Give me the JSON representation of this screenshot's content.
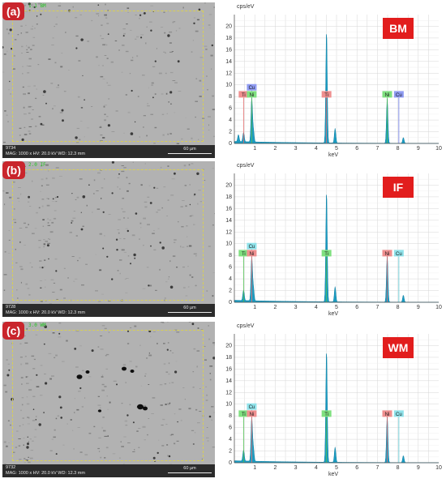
{
  "panels": [
    {
      "label": "(a)",
      "sample": "BM",
      "sem": {
        "corner_tag": "1.1 BM",
        "code": "9734",
        "meta": "MAG: 1000 x HV: 20.0 kV WD: 12.3 mm",
        "scale": "60 µm"
      },
      "tex_seed": 7,
      "big_pores": false
    },
    {
      "label": "(b)",
      "sample": "IF",
      "sem": {
        "corner_tag": "2.0 IF",
        "code": "9728",
        "meta": "MAG: 1000 x HV: 20.0 kV WD: 12.3 mm",
        "scale": "60 µm"
      },
      "tex_seed": 19,
      "big_pores": false
    },
    {
      "label": "(c)",
      "sample": "WM",
      "sem": {
        "corner_tag": "3.0 WM",
        "code": "9732",
        "meta": "MAG: 1000 x HV: 20.0 kV WD: 12.3 mm",
        "scale": "60 µm"
      },
      "tex_seed": 31,
      "big_pores": true
    }
  ],
  "colors": {
    "fill": "#1b9cc2",
    "line": "#0d7fa3",
    "tag": "#e21d1d",
    "grid": "#d6d6d6"
  },
  "chart_data": [
    {
      "type": "area",
      "title": "BM",
      "ylabel": "cps/eV",
      "xlabel": "keV",
      "xlim": [
        0,
        10
      ],
      "ylim": [
        0,
        22
      ],
      "xticks": [
        1,
        2,
        3,
        4,
        5,
        6,
        7,
        8,
        9,
        10
      ],
      "yticks": [
        0,
        2,
        4,
        6,
        8,
        10,
        12,
        14,
        16,
        18,
        20
      ],
      "grid": true,
      "peaks": [
        {
          "x": 0.2,
          "y": 1.2
        },
        {
          "x": 0.45,
          "y": 1.6
        },
        {
          "x": 0.85,
          "y": 7.6
        },
        {
          "x": 0.93,
          "y": 2.0
        },
        {
          "x": 4.51,
          "y": 19.3
        },
        {
          "x": 4.93,
          "y": 2.5
        },
        {
          "x": 7.48,
          "y": 7.6
        },
        {
          "x": 8.27,
          "y": 1.0
        }
      ],
      "markers": [
        {
          "x": 0.45,
          "label": "Ti",
          "color": "#ef8f8f",
          "line": "#e46b6b",
          "y": 8.8
        },
        {
          "x": 0.85,
          "label": "Cu",
          "color": "#8f9bf2",
          "line": "#6b79e4",
          "y": 10.0
        },
        {
          "x": 0.85,
          "label": "Ni",
          "color": "#7fe07f",
          "line": "#4fbf4f",
          "y": 8.8
        },
        {
          "x": 4.51,
          "label": "Ti",
          "color": "#ef8f8f",
          "line": "#e46b6b",
          "y": 8.8
        },
        {
          "x": 7.48,
          "label": "Ni",
          "color": "#7fe07f",
          "line": "#4fbf4f",
          "y": 8.8
        },
        {
          "x": 8.05,
          "label": "Cu",
          "color": "#8f9bf2",
          "line": "#6b79e4",
          "y": 8.8
        }
      ]
    },
    {
      "type": "area",
      "title": "IF",
      "ylabel": "cps/eV",
      "xlabel": "keV",
      "xlim": [
        0,
        10
      ],
      "ylim": [
        0,
        22
      ],
      "xticks": [
        1,
        2,
        3,
        4,
        5,
        6,
        7,
        8,
        9,
        10
      ],
      "yticks": [
        0,
        2,
        4,
        6,
        8,
        10,
        12,
        14,
        16,
        18,
        20
      ],
      "grid": true,
      "peaks": [
        {
          "x": 0.45,
          "y": 1.8
        },
        {
          "x": 0.85,
          "y": 7.6
        },
        {
          "x": 0.93,
          "y": 2.2
        },
        {
          "x": 4.51,
          "y": 19.0
        },
        {
          "x": 4.93,
          "y": 2.6
        },
        {
          "x": 7.48,
          "y": 8.0
        },
        {
          "x": 8.27,
          "y": 1.2
        }
      ],
      "markers": [
        {
          "x": 0.45,
          "label": "Ti",
          "color": "#7fe07f",
          "line": "#4fbf4f",
          "y": 8.8
        },
        {
          "x": 0.85,
          "label": "Cu",
          "color": "#8fe2ea",
          "line": "#59c5d0",
          "y": 10.0
        },
        {
          "x": 0.85,
          "label": "Ni",
          "color": "#ef8f8f",
          "line": "#e46b6b",
          "y": 8.8
        },
        {
          "x": 4.51,
          "label": "Ti",
          "color": "#7fe07f",
          "line": "#4fbf4f",
          "y": 8.8
        },
        {
          "x": 7.48,
          "label": "Ni",
          "color": "#ef8f8f",
          "line": "#e46b6b",
          "y": 8.8
        },
        {
          "x": 8.05,
          "label": "Cu",
          "color": "#8fe2ea",
          "line": "#59c5d0",
          "y": 8.8
        }
      ]
    },
    {
      "type": "area",
      "title": "WM",
      "ylabel": "cps/eV",
      "xlabel": "keV",
      "xlim": [
        0,
        10
      ],
      "ylim": [
        0,
        22
      ],
      "xticks": [
        1,
        2,
        3,
        4,
        5,
        6,
        7,
        8,
        9,
        10
      ],
      "yticks": [
        0,
        2,
        4,
        6,
        8,
        10,
        12,
        14,
        16,
        18,
        20
      ],
      "grid": true,
      "peaks": [
        {
          "x": 0.45,
          "y": 1.9
        },
        {
          "x": 0.85,
          "y": 7.6
        },
        {
          "x": 0.93,
          "y": 2.2
        },
        {
          "x": 4.51,
          "y": 19.3
        },
        {
          "x": 4.93,
          "y": 2.6
        },
        {
          "x": 7.48,
          "y": 8.0
        },
        {
          "x": 8.27,
          "y": 1.2
        }
      ],
      "markers": [
        {
          "x": 0.45,
          "label": "Ti",
          "color": "#7fe07f",
          "line": "#4fbf4f",
          "y": 8.8
        },
        {
          "x": 0.85,
          "label": "Cu",
          "color": "#8fe2ea",
          "line": "#59c5d0",
          "y": 10.0
        },
        {
          "x": 0.85,
          "label": "Ni",
          "color": "#ef8f8f",
          "line": "#e46b6b",
          "y": 8.8
        },
        {
          "x": 4.51,
          "label": "Ti",
          "color": "#7fe07f",
          "line": "#4fbf4f",
          "y": 8.8
        },
        {
          "x": 7.48,
          "label": "Ni",
          "color": "#ef8f8f",
          "line": "#e46b6b",
          "y": 8.8
        },
        {
          "x": 8.05,
          "label": "Cu",
          "color": "#8fe2ea",
          "line": "#59c5d0",
          "y": 8.8
        }
      ]
    }
  ]
}
